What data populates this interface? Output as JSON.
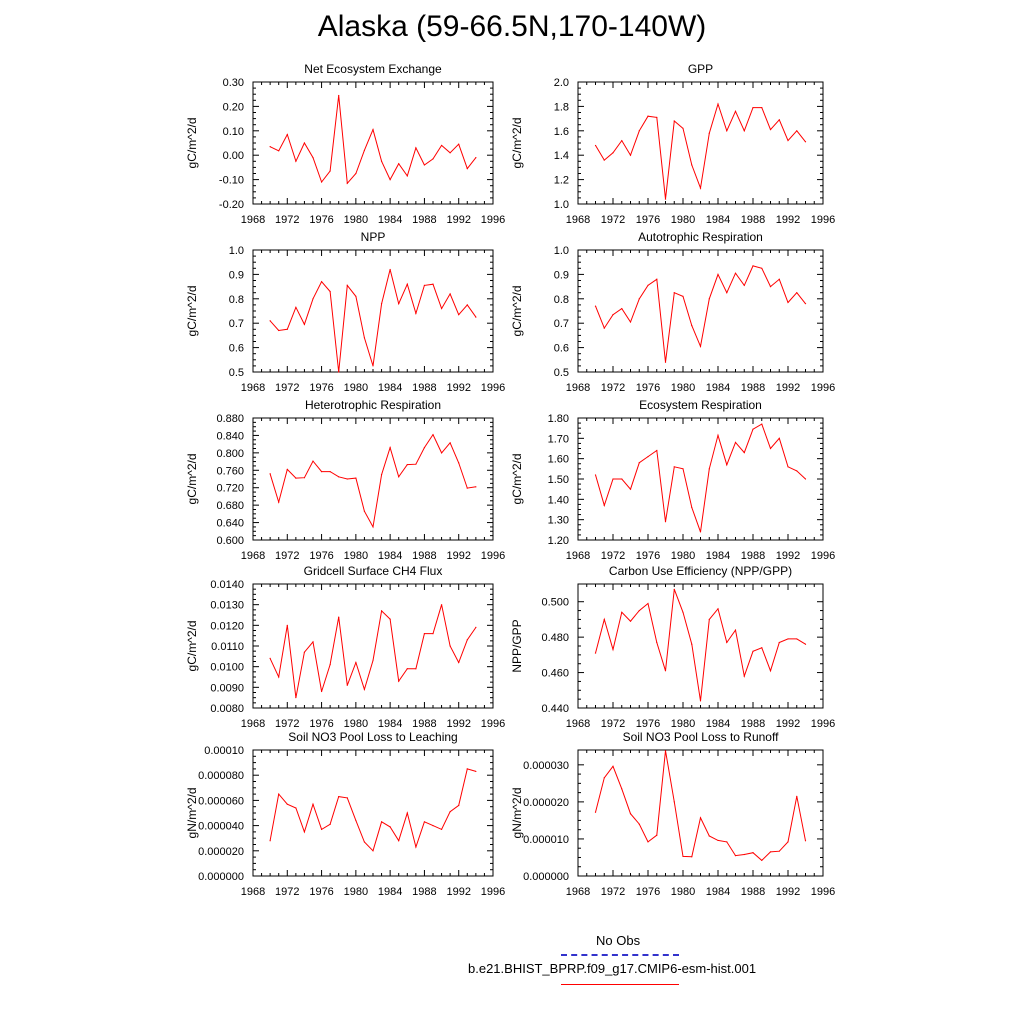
{
  "title": "Alaska (59-66.5N,170-140W)",
  "legend": {
    "obs_label": "No Obs",
    "obs_color": "#3333cc",
    "model_label": "b.e21.BHIST_BPRP.f09_g17.CMIP6-esm-hist.001",
    "model_color": "#ff0000"
  },
  "chart_data": [
    {
      "type": "line",
      "title": "Net Ecosystem Exchange",
      "ylabel": "gC/m^2/d",
      "xlim": [
        1968,
        1996
      ],
      "xticks": [
        1968,
        1972,
        1976,
        1980,
        1984,
        1988,
        1992,
        1996
      ],
      "xtick_labels": [
        "1968",
        "1972",
        "1976",
        "1980",
        "1984",
        "1988",
        "1992",
        "1996"
      ],
      "ylim": [
        -0.2,
        0.3
      ],
      "yticks": [
        -0.2,
        -0.1,
        0.0,
        0.1,
        0.2,
        0.3
      ],
      "ytick_labels": [
        "-0.20",
        "-0.10",
        "0.00",
        "0.10",
        "0.20",
        "0.30"
      ],
      "x": [
        1970,
        1971,
        1972,
        1973,
        1974,
        1975,
        1976,
        1977,
        1978,
        1979,
        1980,
        1981,
        1982,
        1983,
        1984,
        1985,
        1986,
        1987,
        1988,
        1989,
        1990,
        1991,
        1992,
        1993,
        1994
      ],
      "series": [
        {
          "color": "#ff0000",
          "values": [
            0.035,
            0.018,
            0.085,
            -0.025,
            0.05,
            -0.01,
            -0.11,
            -0.065,
            0.245,
            -0.115,
            -0.075,
            0.02,
            0.105,
            -0.025,
            -0.1,
            -0.035,
            -0.085,
            0.03,
            -0.04,
            -0.015,
            0.04,
            0.01,
            0.045,
            -0.055,
            -0.01
          ]
        }
      ]
    },
    {
      "type": "line",
      "title": "GPP",
      "ylabel": "gC/m^2/d",
      "xlim": [
        1968,
        1996
      ],
      "xticks": [
        1968,
        1972,
        1976,
        1980,
        1984,
        1988,
        1992,
        1996
      ],
      "xtick_labels": [
        "1968",
        "1972",
        "1976",
        "1980",
        "1984",
        "1988",
        "1992",
        "1996"
      ],
      "ylim": [
        1.0,
        2.0
      ],
      "yticks": [
        1.0,
        1.2,
        1.4,
        1.6,
        1.8,
        2.0
      ],
      "ytick_labels": [
        "1.0",
        "1.2",
        "1.4",
        "1.6",
        "1.8",
        "2.0"
      ],
      "x": [
        1970,
        1971,
        1972,
        1973,
        1974,
        1975,
        1976,
        1977,
        1978,
        1979,
        1980,
        1981,
        1982,
        1983,
        1984,
        1985,
        1986,
        1987,
        1988,
        1989,
        1990,
        1991,
        1992,
        1993,
        1994
      ],
      "series": [
        {
          "color": "#ff0000",
          "values": [
            1.48,
            1.36,
            1.42,
            1.52,
            1.4,
            1.6,
            1.72,
            1.71,
            1.04,
            1.68,
            1.62,
            1.32,
            1.13,
            1.58,
            1.82,
            1.6,
            1.76,
            1.6,
            1.79,
            1.79,
            1.61,
            1.69,
            1.52,
            1.6,
            1.51
          ]
        }
      ]
    },
    {
      "type": "line",
      "title": "NPP",
      "ylabel": "gC/m^2/d",
      "xlim": [
        1968,
        1996
      ],
      "xticks": [
        1968,
        1972,
        1976,
        1980,
        1984,
        1988,
        1992,
        1996
      ],
      "xtick_labels": [
        "1968",
        "1972",
        "1976",
        "1980",
        "1984",
        "1988",
        "1992",
        "1996"
      ],
      "ylim": [
        0.5,
        1.0
      ],
      "yticks": [
        0.5,
        0.6,
        0.7,
        0.8,
        0.9,
        1.0
      ],
      "ytick_labels": [
        "0.5",
        "0.6",
        "0.7",
        "0.8",
        "0.9",
        "1.0"
      ],
      "x": [
        1970,
        1971,
        1972,
        1973,
        1974,
        1975,
        1976,
        1977,
        1978,
        1979,
        1980,
        1981,
        1982,
        1983,
        1984,
        1985,
        1986,
        1987,
        1988,
        1989,
        1990,
        1991,
        1992,
        1993,
        1994
      ],
      "series": [
        {
          "color": "#ff0000",
          "values": [
            0.71,
            0.67,
            0.675,
            0.765,
            0.695,
            0.8,
            0.87,
            0.83,
            0.5,
            0.855,
            0.81,
            0.64,
            0.525,
            0.78,
            0.92,
            0.78,
            0.86,
            0.74,
            0.855,
            0.86,
            0.76,
            0.82,
            0.735,
            0.775,
            0.725
          ]
        }
      ]
    },
    {
      "type": "line",
      "title": "Autotrophic Respiration",
      "ylabel": "gC/m^2/d",
      "xlim": [
        1968,
        1996
      ],
      "xticks": [
        1968,
        1972,
        1976,
        1980,
        1984,
        1988,
        1992,
        1996
      ],
      "xtick_labels": [
        "1968",
        "1972",
        "1976",
        "1980",
        "1984",
        "1988",
        "1992",
        "1996"
      ],
      "ylim": [
        0.5,
        1.0
      ],
      "yticks": [
        0.5,
        0.6,
        0.7,
        0.8,
        0.9,
        1.0
      ],
      "ytick_labels": [
        "0.5",
        "0.6",
        "0.7",
        "0.8",
        "0.9",
        "1.0"
      ],
      "x": [
        1970,
        1971,
        1972,
        1973,
        1974,
        1975,
        1976,
        1977,
        1978,
        1979,
        1980,
        1981,
        1982,
        1983,
        1984,
        1985,
        1986,
        1987,
        1988,
        1989,
        1990,
        1991,
        1992,
        1993,
        1994
      ],
      "series": [
        {
          "color": "#ff0000",
          "values": [
            0.77,
            0.68,
            0.735,
            0.76,
            0.705,
            0.8,
            0.855,
            0.88,
            0.54,
            0.825,
            0.81,
            0.69,
            0.605,
            0.8,
            0.9,
            0.825,
            0.905,
            0.855,
            0.935,
            0.925,
            0.85,
            0.88,
            0.785,
            0.825,
            0.78
          ]
        }
      ]
    },
    {
      "type": "line",
      "title": "Heterotrophic Respiration",
      "ylabel": "gC/m^2/d",
      "xlim": [
        1968,
        1996
      ],
      "xticks": [
        1968,
        1972,
        1976,
        1980,
        1984,
        1988,
        1992,
        1996
      ],
      "xtick_labels": [
        "1968",
        "1972",
        "1976",
        "1980",
        "1984",
        "1988",
        "1992",
        "1996"
      ],
      "ylim": [
        0.6,
        0.88
      ],
      "yticks": [
        0.6,
        0.64,
        0.68,
        0.72,
        0.76,
        0.8,
        0.84,
        0.88
      ],
      "ytick_labels": [
        "0.600",
        "0.640",
        "0.680",
        "0.720",
        "0.760",
        "0.800",
        "0.840",
        "0.880"
      ],
      "x": [
        1970,
        1971,
        1972,
        1973,
        1974,
        1975,
        1976,
        1977,
        1978,
        1979,
        1980,
        1981,
        1982,
        1983,
        1984,
        1985,
        1986,
        1987,
        1988,
        1989,
        1990,
        1991,
        1992,
        1993,
        1994
      ],
      "series": [
        {
          "color": "#ff0000",
          "values": [
            0.752,
            0.687,
            0.762,
            0.742,
            0.743,
            0.781,
            0.757,
            0.757,
            0.745,
            0.74,
            0.742,
            0.666,
            0.63,
            0.75,
            0.812,
            0.745,
            0.773,
            0.774,
            0.812,
            0.842,
            0.8,
            0.823,
            0.777,
            0.719,
            0.722
          ]
        }
      ]
    },
    {
      "type": "line",
      "title": "Ecosystem Respiration",
      "ylabel": "gC/m^2/d",
      "xlim": [
        1968,
        1996
      ],
      "xticks": [
        1968,
        1972,
        1976,
        1980,
        1984,
        1988,
        1992,
        1996
      ],
      "xtick_labels": [
        "1968",
        "1972",
        "1976",
        "1980",
        "1984",
        "1988",
        "1992",
        "1996"
      ],
      "ylim": [
        1.2,
        1.8
      ],
      "yticks": [
        1.2,
        1.3,
        1.4,
        1.5,
        1.6,
        1.7,
        1.8
      ],
      "ytick_labels": [
        "1.20",
        "1.30",
        "1.40",
        "1.50",
        "1.60",
        "1.70",
        "1.80"
      ],
      "x": [
        1970,
        1971,
        1972,
        1973,
        1974,
        1975,
        1976,
        1977,
        1978,
        1979,
        1980,
        1981,
        1982,
        1983,
        1984,
        1985,
        1986,
        1987,
        1988,
        1989,
        1990,
        1991,
        1992,
        1993,
        1994
      ],
      "series": [
        {
          "color": "#ff0000",
          "values": [
            1.52,
            1.37,
            1.5,
            1.5,
            1.45,
            1.58,
            1.61,
            1.64,
            1.29,
            1.56,
            1.55,
            1.36,
            1.24,
            1.55,
            1.715,
            1.57,
            1.68,
            1.63,
            1.745,
            1.77,
            1.65,
            1.7,
            1.56,
            1.54,
            1.5
          ]
        }
      ]
    },
    {
      "type": "line",
      "title": "Gridcell Surface CH4 Flux",
      "ylabel": "gC/m^2/d",
      "xlim": [
        1968,
        1996
      ],
      "xticks": [
        1968,
        1972,
        1976,
        1980,
        1984,
        1988,
        1992,
        1996
      ],
      "xtick_labels": [
        "1968",
        "1972",
        "1976",
        "1980",
        "1984",
        "1988",
        "1992",
        "1996"
      ],
      "ylim": [
        0.008,
        0.014
      ],
      "yticks": [
        0.008,
        0.009,
        0.01,
        0.011,
        0.012,
        0.013,
        0.014
      ],
      "ytick_labels": [
        "0.0080",
        "0.0090",
        "0.0100",
        "0.0110",
        "0.0120",
        "0.0130",
        "0.0140"
      ],
      "x": [
        1970,
        1971,
        1972,
        1973,
        1974,
        1975,
        1976,
        1977,
        1978,
        1979,
        1980,
        1981,
        1982,
        1983,
        1984,
        1985,
        1986,
        1987,
        1988,
        1989,
        1990,
        1991,
        1992,
        1993,
        1994
      ],
      "series": [
        {
          "color": "#ff0000",
          "values": [
            0.0104,
            0.0095,
            0.012,
            0.0085,
            0.0107,
            0.0112,
            0.0088,
            0.0101,
            0.0124,
            0.0091,
            0.0102,
            0.0089,
            0.0103,
            0.0127,
            0.0123,
            0.0093,
            0.0099,
            0.0099,
            0.0116,
            0.0116,
            0.013,
            0.011,
            0.0102,
            0.0113,
            0.0119
          ]
        }
      ]
    },
    {
      "type": "line",
      "title": "Carbon Use Efficiency (NPP/GPP)",
      "ylabel": "NPP/GPP",
      "xlim": [
        1968,
        1996
      ],
      "xticks": [
        1968,
        1972,
        1976,
        1980,
        1984,
        1988,
        1992,
        1996
      ],
      "xtick_labels": [
        "1968",
        "1972",
        "1976",
        "1980",
        "1984",
        "1988",
        "1992",
        "1996"
      ],
      "ylim": [
        0.44,
        0.51
      ],
      "yticks": [
        0.44,
        0.46,
        0.48,
        0.5
      ],
      "ytick_labels": [
        "0.440",
        "0.460",
        "0.480",
        "0.500"
      ],
      "x": [
        1970,
        1971,
        1972,
        1973,
        1974,
        1975,
        1976,
        1977,
        1978,
        1979,
        1980,
        1981,
        1982,
        1983,
        1984,
        1985,
        1986,
        1987,
        1988,
        1989,
        1990,
        1991,
        1992,
        1993,
        1994
      ],
      "series": [
        {
          "color": "#ff0000",
          "values": [
            0.471,
            0.49,
            0.473,
            0.494,
            0.489,
            0.495,
            0.499,
            0.477,
            0.461,
            0.507,
            0.494,
            0.476,
            0.444,
            0.49,
            0.496,
            0.477,
            0.484,
            0.458,
            0.472,
            0.474,
            0.461,
            0.477,
            0.479,
            0.479,
            0.476
          ]
        }
      ]
    },
    {
      "type": "line",
      "title": "Soil NO3 Pool Loss to Leaching",
      "ylabel": "gN/m^2/d",
      "xlim": [
        1968,
        1996
      ],
      "xticks": [
        1968,
        1972,
        1976,
        1980,
        1984,
        1988,
        1992,
        1996
      ],
      "xtick_labels": [
        "1968",
        "1972",
        "1976",
        "1980",
        "1984",
        "1988",
        "1992",
        "1996"
      ],
      "ylim": [
        0.0,
        0.0001
      ],
      "yticks": [
        0.0,
        2e-05,
        4e-05,
        6e-05,
        8e-05,
        0.0001
      ],
      "ytick_labels": [
        "0.000000",
        "0.000020",
        "0.000040",
        "0.000060",
        "0.000080",
        "0.00010"
      ],
      "x": [
        1970,
        1971,
        1972,
        1973,
        1974,
        1975,
        1976,
        1977,
        1978,
        1979,
        1980,
        1981,
        1982,
        1983,
        1984,
        1985,
        1986,
        1987,
        1988,
        1989,
        1990,
        1991,
        1992,
        1993,
        1994
      ],
      "series": [
        {
          "color": "#ff0000",
          "values": [
            2.8e-05,
            6.5e-05,
            5.7e-05,
            5.4e-05,
            3.5e-05,
            5.7e-05,
            3.7e-05,
            4.1e-05,
            6.3e-05,
            6.2e-05,
            4.4e-05,
            2.7e-05,
            2e-05,
            4.3e-05,
            3.9e-05,
            2.8e-05,
            5e-05,
            2.3e-05,
            4.3e-05,
            4e-05,
            3.7e-05,
            5.1e-05,
            5.6e-05,
            8.5e-05,
            8.3e-05
          ]
        }
      ]
    },
    {
      "type": "line",
      "title": "Soil NO3 Pool Loss to Runoff",
      "ylabel": "gN/m^2/d",
      "xlim": [
        1968,
        1996
      ],
      "xticks": [
        1968,
        1972,
        1976,
        1980,
        1984,
        1988,
        1992,
        1996
      ],
      "xtick_labels": [
        "1968",
        "1972",
        "1976",
        "1980",
        "1984",
        "1988",
        "1992",
        "1996"
      ],
      "ylim": [
        0.0,
        3.4e-05
      ],
      "yticks": [
        0.0,
        1e-05,
        2e-05,
        3e-05
      ],
      "ytick_labels": [
        "0.000000",
        "0.000010",
        "0.000020",
        "0.000030"
      ],
      "x": [
        1970,
        1971,
        1972,
        1973,
        1974,
        1975,
        1976,
        1977,
        1978,
        1979,
        1980,
        1981,
        1982,
        1983,
        1984,
        1985,
        1986,
        1987,
        1988,
        1989,
        1990,
        1991,
        1992,
        1993,
        1994
      ],
      "series": [
        {
          "color": "#ff0000",
          "values": [
            1.72e-05,
            2.65e-05,
            2.96e-05,
            2.35e-05,
            1.68e-05,
            1.4e-05,
            9.2e-06,
            1.1e-05,
            3.38e-05,
            2e-05,
            5.3e-06,
            5.2e-06,
            1.57e-05,
            1.08e-05,
            9.6e-06,
            9.2e-06,
            5.5e-06,
            5.8e-06,
            6.3e-06,
            4.2e-06,
            6.5e-06,
            6.7e-06,
            9.2e-06,
            2.15e-05,
            9.5e-06
          ]
        }
      ]
    }
  ]
}
